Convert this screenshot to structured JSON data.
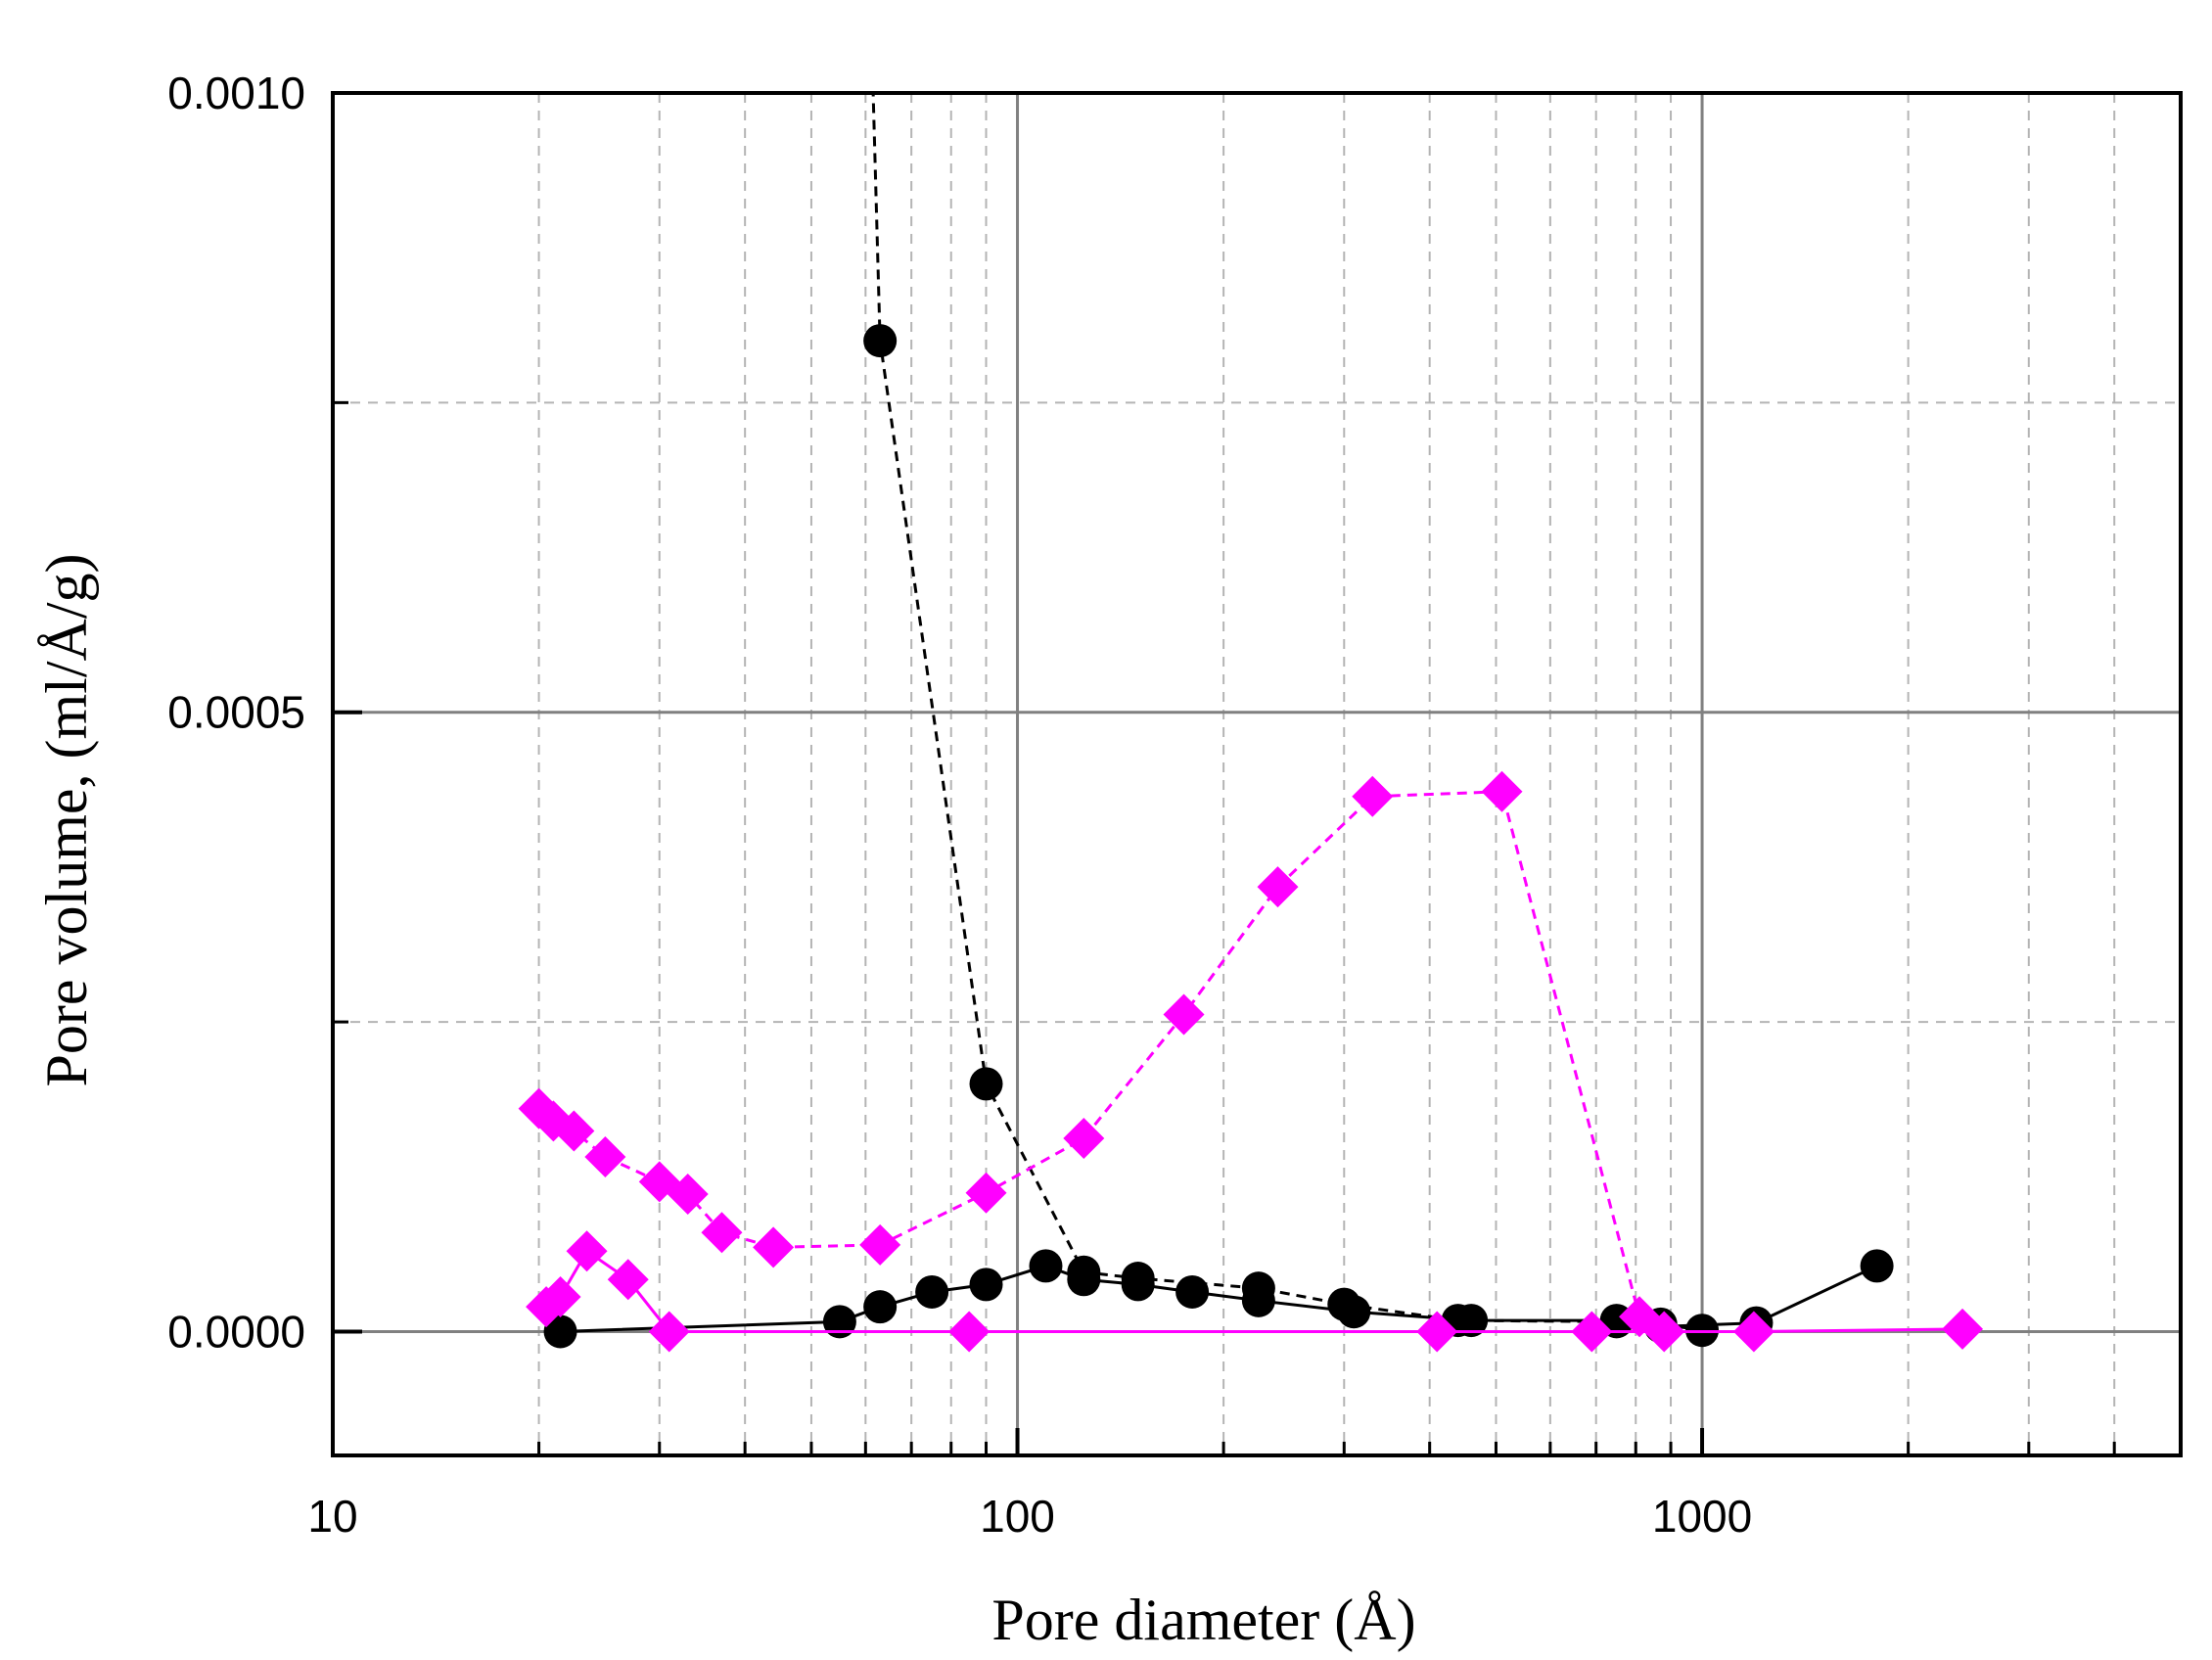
{
  "chart_data": {
    "type": "line",
    "title": "",
    "xlabel": "Pore diameter (Å)",
    "ylabel": "Pore volume, (ml/Å/g)",
    "xscale": "log",
    "xlim": [
      10,
      5000
    ],
    "ylim": [
      -0.0001,
      0.001
    ],
    "grid": true,
    "x_ticks": [
      10,
      100,
      1000
    ],
    "x_tick_labels": [
      "10",
      "100",
      "1000"
    ],
    "y_ticks": [
      0.0,
      0.0005,
      0.001
    ],
    "y_tick_labels": [
      "0.0000",
      "0.0005",
      "0.0010"
    ],
    "series": [
      {
        "color": "#000000",
        "marker": "circle",
        "line": "dashed",
        "points": [
          [
            60,
            0.00122
          ],
          [
            63,
            0.0008
          ],
          [
            90,
            0.0002
          ],
          [
            125,
            4.8e-05
          ],
          [
            150,
            4.3e-05
          ],
          [
            225,
            3.5e-05
          ],
          [
            300,
            2.2e-05
          ],
          [
            440,
            9e-06
          ],
          [
            750,
            8e-06
          ],
          [
            870,
            6e-06
          ],
          [
            1000,
            1e-06
          ]
        ]
      },
      {
        "color": "#000000",
        "marker": "circle",
        "line": "solid",
        "points": [
          [
            21.5,
            0.0
          ],
          [
            55,
            8e-06
          ],
          [
            63,
            2e-05
          ],
          [
            75,
            3.2e-05
          ],
          [
            90,
            3.8e-05
          ],
          [
            110,
            5.3e-05
          ],
          [
            125,
            4.2e-05
          ],
          [
            150,
            3.8e-05
          ],
          [
            180,
            3.2e-05
          ],
          [
            225,
            2.5e-05
          ],
          [
            310,
            1.6e-05
          ],
          [
            460,
            9e-06
          ],
          [
            750,
            9e-06
          ],
          [
            870,
            4e-06
          ],
          [
            1200,
            7e-06
          ],
          [
            1800,
            5.3e-05
          ]
        ]
      },
      {
        "color": "#FF00FF",
        "marker": "diamond",
        "line": "dashed",
        "points": [
          [
            20,
            0.00018
          ],
          [
            21,
            0.00017
          ],
          [
            22.5,
            0.000162
          ],
          [
            25,
            0.000141
          ],
          [
            30,
            0.000121
          ],
          [
            33,
            0.000111
          ],
          [
            37,
            8e-05
          ],
          [
            44,
            6.8e-05
          ],
          [
            63,
            7e-05
          ],
          [
            90,
            0.000112
          ],
          [
            125,
            0.000156
          ],
          [
            175,
            0.000256
          ],
          [
            240,
            0.000359
          ],
          [
            330,
            0.000432
          ],
          [
            510,
            0.000436
          ],
          [
            810,
            1.2e-05
          ],
          [
            880,
            0.0
          ]
        ]
      },
      {
        "color": "#FF00FF",
        "marker": "diamond",
        "line": "solid",
        "points": [
          [
            20.5,
            2e-05
          ],
          [
            21.5,
            2.8e-05
          ],
          [
            23.5,
            6.5e-05
          ],
          [
            27,
            4.2e-05
          ],
          [
            31,
            0.0
          ],
          [
            85,
            0.0
          ],
          [
            410,
            0.0
          ],
          [
            690,
            0.0
          ],
          [
            1190,
            0.0
          ],
          [
            2400,
            2e-06
          ]
        ]
      }
    ]
  }
}
